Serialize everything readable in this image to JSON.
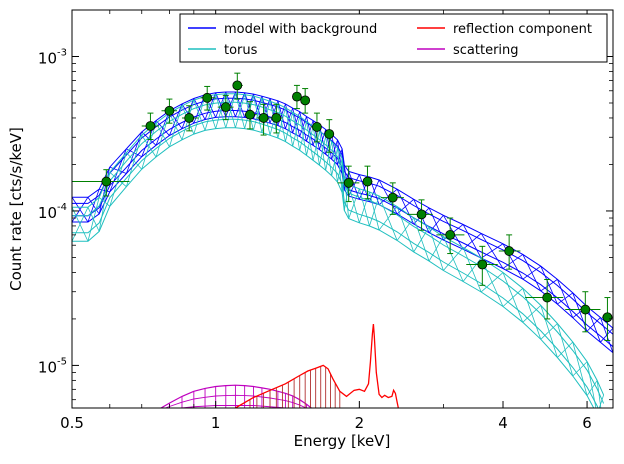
{
  "chart_data": {
    "type": "scatter",
    "title": "",
    "xlabel": "Energy [keV]",
    "ylabel": "Count rate [cts/s/keV]",
    "xscale": "log",
    "yscale": "log",
    "xlim": [
      0.5,
      6.8
    ],
    "ylim": [
      5.3e-06,
      0.002
    ],
    "x_ticks": [
      {
        "value": 0.5,
        "label": "0.5"
      },
      {
        "value": 1,
        "label": "1"
      },
      {
        "value": 2,
        "label": "2"
      },
      {
        "value": 4,
        "label": "4"
      },
      {
        "value": 6,
        "label": "6"
      }
    ],
    "y_ticks": [
      {
        "value": 1e-05,
        "base": "10",
        "exp": "-5"
      },
      {
        "value": 0.0001,
        "base": "10",
        "exp": "-4"
      },
      {
        "value": 0.001,
        "base": "10",
        "exp": "-3"
      }
    ],
    "grid": false,
    "legend": {
      "placement": "top-right",
      "columns": 2,
      "entries": [
        {
          "label": "model with background",
          "color": "#0000ff"
        },
        {
          "label": "torus",
          "color": "#1fbfbf"
        },
        {
          "label": "reflection component",
          "color": "#ff0000"
        },
        {
          "label": "scattering",
          "color": "#bf00bf"
        }
      ]
    },
    "colors": {
      "data": "#008000",
      "model": "#0000ff",
      "torus": "#1fbfbf",
      "reflection": "#ff0000",
      "reflection_fill": "#b03030",
      "scattering": "#bf00bf"
    },
    "data_points": [
      {
        "x": 0.59,
        "y": 0.000155,
        "xlo": 0.5,
        "xhi": 0.66,
        "ylo": 0.000125,
        "yhi": 0.000185
      },
      {
        "x": 0.73,
        "y": 0.000355,
        "xlo": 0.7,
        "xhi": 0.76,
        "ylo": 0.00029,
        "yhi": 0.00043
      },
      {
        "x": 0.8,
        "y": 0.000445,
        "xlo": 0.77,
        "xhi": 0.83,
        "ylo": 0.00037,
        "yhi": 0.00053
      },
      {
        "x": 0.88,
        "y": 0.0004,
        "xlo": 0.85,
        "xhi": 0.92,
        "ylo": 0.00033,
        "yhi": 0.00048
      },
      {
        "x": 0.96,
        "y": 0.00054,
        "xlo": 0.93,
        "xhi": 1.0,
        "ylo": 0.00045,
        "yhi": 0.00064
      },
      {
        "x": 1.05,
        "y": 0.00047,
        "xlo": 1.01,
        "xhi": 1.09,
        "ylo": 0.00039,
        "yhi": 0.00056
      },
      {
        "x": 1.11,
        "y": 0.00065,
        "xlo": 1.09,
        "xhi": 1.14,
        "ylo": 0.00053,
        "yhi": 0.00078
      },
      {
        "x": 1.18,
        "y": 0.00042,
        "xlo": 1.15,
        "xhi": 1.22,
        "ylo": 0.00034,
        "yhi": 0.00051
      },
      {
        "x": 1.26,
        "y": 0.0004,
        "xlo": 1.22,
        "xhi": 1.3,
        "ylo": 0.00031,
        "yhi": 0.00049
      },
      {
        "x": 1.34,
        "y": 0.0004,
        "xlo": 1.3,
        "xhi": 1.38,
        "ylo": 0.00032,
        "yhi": 0.00049
      },
      {
        "x": 1.48,
        "y": 0.00055,
        "xlo": 1.46,
        "xhi": 1.5,
        "ylo": 0.00046,
        "yhi": 0.00065
      },
      {
        "x": 1.54,
        "y": 0.00052,
        "xlo": 1.51,
        "xhi": 1.57,
        "ylo": 0.00043,
        "yhi": 0.00062
      },
      {
        "x": 1.63,
        "y": 0.00035,
        "xlo": 1.58,
        "xhi": 1.66,
        "ylo": 0.00028,
        "yhi": 0.00043
      },
      {
        "x": 1.73,
        "y": 0.000315,
        "xlo": 1.69,
        "xhi": 1.77,
        "ylo": 0.00024,
        "yhi": 0.00039
      },
      {
        "x": 1.9,
        "y": 0.000152,
        "xlo": 1.8,
        "xhi": 2.0,
        "ylo": 0.000115,
        "yhi": 0.000195
      },
      {
        "x": 2.08,
        "y": 0.000155,
        "xlo": 2.03,
        "xhi": 2.13,
        "ylo": 0.00012,
        "yhi": 0.000195
      },
      {
        "x": 2.35,
        "y": 0.000122,
        "xlo": 2.22,
        "xhi": 2.48,
        "ylo": 9.5e-05,
        "yhi": 0.000152
      },
      {
        "x": 2.7,
        "y": 9.5e-05,
        "xlo": 2.52,
        "xhi": 2.85,
        "ylo": 7.5e-05,
        "yhi": 0.000118
      },
      {
        "x": 3.1,
        "y": 7e-05,
        "xlo": 2.9,
        "xhi": 3.32,
        "ylo": 5.3e-05,
        "yhi": 9e-05
      },
      {
        "x": 3.62,
        "y": 4.5e-05,
        "xlo": 3.35,
        "xhi": 3.9,
        "ylo": 3.3e-05,
        "yhi": 5.9e-05
      },
      {
        "x": 4.12,
        "y": 5.5e-05,
        "xlo": 3.92,
        "xhi": 4.35,
        "ylo": 4.2e-05,
        "yhi": 7e-05
      },
      {
        "x": 4.95,
        "y": 2.75e-05,
        "xlo": 4.45,
        "xhi": 5.35,
        "ylo": 2e-05,
        "yhi": 3.6e-05
      },
      {
        "x": 5.95,
        "y": 2.3e-05,
        "xlo": 5.4,
        "xhi": 6.4,
        "ylo": 1.65e-05,
        "yhi": 3e-05
      },
      {
        "x": 6.62,
        "y": 2.05e-05,
        "xlo": 6.45,
        "xhi": 6.8,
        "ylo": 1.45e-05,
        "yhi": 2.75e-05
      }
    ],
    "series": [
      {
        "key": "model",
        "x": [
          0.5,
          0.54,
          0.57,
          0.6,
          0.65,
          0.7,
          0.75,
          0.8,
          0.85,
          0.9,
          0.95,
          1.0,
          1.05,
          1.1,
          1.15,
          1.2,
          1.25,
          1.3,
          1.35,
          1.4,
          1.45,
          1.5,
          1.55,
          1.6,
          1.65,
          1.7,
          1.75,
          1.8,
          1.84,
          1.86,
          1.9,
          2.0,
          2.1,
          2.2,
          2.4,
          2.6,
          2.8,
          3.0,
          3.3,
          3.6,
          4.0,
          4.4,
          4.8,
          5.2,
          5.6,
          6.0,
          6.4,
          6.8
        ],
        "y": [
          0.000102,
          0.000102,
          0.000115,
          0.00016,
          0.00021,
          0.00027,
          0.00032,
          0.00037,
          0.00041,
          0.000445,
          0.00047,
          0.000485,
          0.00049,
          0.00049,
          0.000485,
          0.000475,
          0.00046,
          0.000445,
          0.00043,
          0.00041,
          0.000385,
          0.000365,
          0.00034,
          0.00032,
          0.0003,
          0.00028,
          0.00026,
          0.00024,
          0.00021,
          0.000165,
          0.00015,
          0.000143,
          0.000138,
          0.000132,
          0.000115,
          9.9e-05,
          8.7e-05,
          7.8e-05,
          6.8e-05,
          5.95e-05,
          5.1e-05,
          4.35e-05,
          3.65e-05,
          3e-05,
          2.45e-05,
          2e-05,
          1.7e-05,
          1.45e-05
        ],
        "band": 0.08
      },
      {
        "key": "torus",
        "x": [
          0.5,
          0.54,
          0.57,
          0.6,
          0.65,
          0.7,
          0.75,
          0.8,
          0.85,
          0.9,
          0.95,
          1.0,
          1.05,
          1.1,
          1.15,
          1.2,
          1.25,
          1.3,
          1.35,
          1.4,
          1.45,
          1.5,
          1.55,
          1.6,
          1.65,
          1.7,
          1.75,
          1.8,
          1.84,
          1.86,
          1.9,
          2.0,
          2.1,
          2.2,
          2.4,
          2.6,
          2.8,
          3.0,
          3.3,
          3.6,
          4.0,
          4.4,
          4.8,
          5.2,
          5.6,
          6.0,
          6.3,
          6.5
        ],
        "y": [
          8.2e-05,
          8.2e-05,
          9.5e-05,
          0.000138,
          0.000185,
          0.00024,
          0.000288,
          0.000335,
          0.000372,
          0.000405,
          0.000428,
          0.00044,
          0.000445,
          0.000445,
          0.00044,
          0.00043,
          0.000415,
          0.000398,
          0.000382,
          0.000362,
          0.000338,
          0.000318,
          0.000295,
          0.000274,
          0.000255,
          0.000236,
          0.000218,
          0.000198,
          0.00017,
          0.00013,
          0.000115,
          0.000108,
          0.000103,
          9.7e-05,
          8.3e-05,
          7e-05,
          6.1e-05,
          5.3e-05,
          4.5e-05,
          3.85e-05,
          3.1e-05,
          2.45e-05,
          1.9e-05,
          1.45e-05,
          1.1e-05,
          8.2e-06,
          6.2e-06,
          5e-06
        ],
        "band": 0.11
      },
      {
        "key": "reflection",
        "x": [
          0.9,
          1.0,
          1.1,
          1.2,
          1.3,
          1.4,
          1.5,
          1.56,
          1.62,
          1.68,
          1.72,
          1.76,
          1.82,
          1.88,
          1.95,
          2.0,
          2.05,
          2.09,
          2.11,
          2.13,
          2.14,
          2.15,
          2.17,
          2.2,
          2.23,
          2.26,
          2.3,
          2.34,
          2.36,
          2.38,
          2.4,
          2.43,
          2.46
        ],
        "y": [
          4e-06,
          4.5e-06,
          5.3e-06,
          6.2e-06,
          6.9e-06,
          7.6e-06,
          8.6e-06,
          9.2e-06,
          9.6e-06,
          1e-05,
          9.5e-06,
          8.2e-06,
          6.8e-06,
          6.3e-06,
          6.9e-06,
          7e-06,
          6.8e-06,
          7.6e-06,
          1.05e-05,
          1.6e-05,
          1.85e-05,
          1.55e-05,
          9e-06,
          6.5e-06,
          6.2e-06,
          6.4e-06,
          6.2e-06,
          6.3e-06,
          6.9e-06,
          6.6e-06,
          5.8e-06,
          4.8e-06,
          4e-06
        ],
        "fill_until": 1.86,
        "fill_step": 0.04
      },
      {
        "key": "scattering",
        "x": [
          0.76,
          0.8,
          0.85,
          0.9,
          0.95,
          1.0,
          1.05,
          1.1,
          1.15,
          1.2,
          1.25,
          1.3,
          1.35,
          1.4,
          1.45,
          1.5,
          1.55,
          1.6
        ],
        "y": [
          5.2e-06,
          5.7e-06,
          6.3e-06,
          6.8e-06,
          7.1e-06,
          7.3e-06,
          7.4e-06,
          7.45e-06,
          7.4e-06,
          7.3e-06,
          7.15e-06,
          7e-06,
          6.8e-06,
          6.6e-06,
          6.35e-06,
          6e-06,
          5.6e-06,
          5.2e-06
        ],
        "lower": [
          5e-06,
          5.15e-06,
          5.3e-06,
          5.4e-06,
          5.45e-06,
          5.5e-06,
          5.5e-06,
          5.5e-06,
          5.5e-06,
          5.5e-06,
          5.45e-06,
          5.4e-06,
          5.35e-06,
          5.3e-06,
          5.2e-06,
          5.1e-06,
          5e-06,
          4.9e-06
        ]
      }
    ]
  }
}
